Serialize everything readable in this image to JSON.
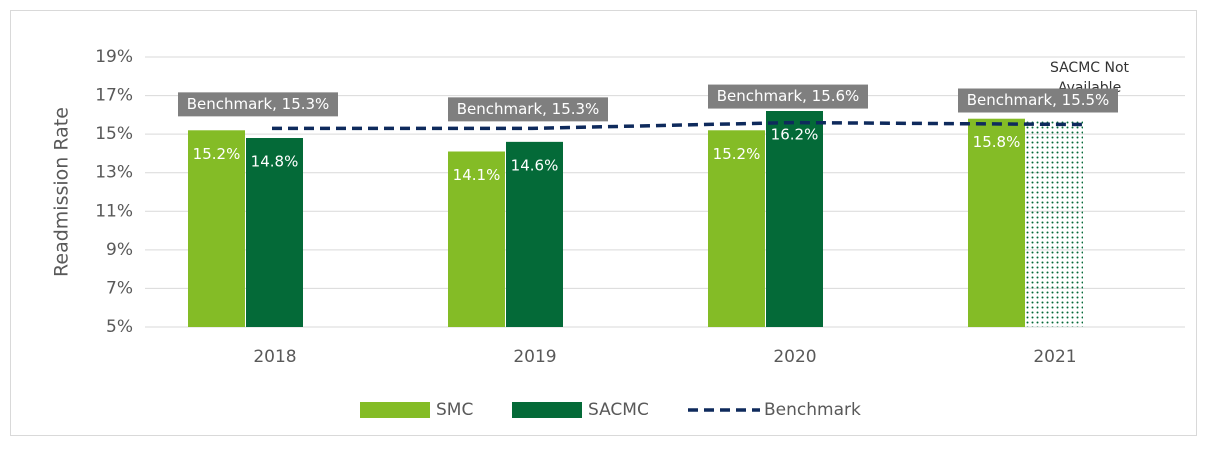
{
  "chart_data": {
    "type": "bar",
    "y_axis_label": "Readmission Rate",
    "categories": [
      "2018",
      "2019",
      "2020",
      "2021"
    ],
    "series": [
      {
        "name": "SMC",
        "color": "#84bc26",
        "values": [
          15.2,
          14.1,
          15.2,
          15.8
        ],
        "value_labels": [
          "15.2%",
          "14.1%",
          "15.2%",
          "15.8%"
        ]
      },
      {
        "name": "SACMC",
        "color": "#046a38",
        "values": [
          14.8,
          14.6,
          16.2,
          null
        ],
        "value_labels": [
          "14.8%",
          "14.6%",
          "16.2%",
          null
        ]
      },
      {
        "name": "Benchmark",
        "color": "#0e2a5c",
        "type": "line",
        "values": [
          15.3,
          15.3,
          15.6,
          15.5
        ],
        "value_labels": [
          "Benchmark, 15.3%",
          "Benchmark, 15.3%",
          "Benchmark, 15.6%",
          "Benchmark, 15.5%"
        ]
      }
    ],
    "annotations": [
      {
        "lines": [
          "SACMC Not",
          "Available"
        ]
      }
    ],
    "ylim": [
      5,
      19
    ],
    "yticks": [
      {
        "value": 5,
        "label": "5%"
      },
      {
        "value": 7,
        "label": "7%"
      },
      {
        "value": 9,
        "label": "9%"
      },
      {
        "value": 11,
        "label": "11%"
      },
      {
        "value": 13,
        "label": "13%"
      },
      {
        "value": 15,
        "label": "15%"
      },
      {
        "value": 17,
        "label": "17%"
      },
      {
        "value": 19,
        "label": "19%"
      }
    ],
    "grid": true,
    "legend": "bottom"
  }
}
